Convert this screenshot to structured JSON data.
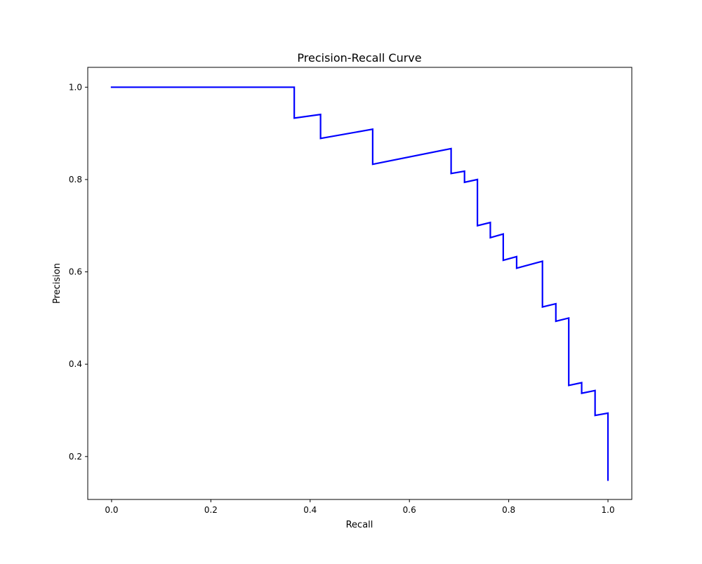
{
  "chart_data": {
    "type": "line",
    "title": "Precision-Recall Curve",
    "xlabel": "Recall",
    "ylabel": "Precision",
    "xlim": [
      -0.048,
      1.048
    ],
    "ylim": [
      0.107,
      1.043
    ],
    "xticks": [
      0.0,
      0.2,
      0.4,
      0.6,
      0.8,
      1.0
    ],
    "xtick_labels": [
      "0.0",
      "0.2",
      "0.4",
      "0.6",
      "0.8",
      "1.0"
    ],
    "yticks": [
      0.2,
      0.4,
      0.6,
      0.8,
      1.0
    ],
    "ytick_labels": [
      "0.2",
      "0.4",
      "0.6",
      "0.8",
      "1.0"
    ],
    "grid": false,
    "legend": "none",
    "series": [
      {
        "name": "Precision-Recall",
        "color": "#0000ff",
        "points": [
          [
            0.0,
            1.0
          ],
          [
            0.368,
            1.0
          ],
          [
            0.368,
            0.933
          ],
          [
            0.421,
            0.941
          ],
          [
            0.421,
            0.889
          ],
          [
            0.526,
            0.909
          ],
          [
            0.526,
            0.833
          ],
          [
            0.684,
            0.867
          ],
          [
            0.684,
            0.813
          ],
          [
            0.711,
            0.818
          ],
          [
            0.711,
            0.794
          ],
          [
            0.737,
            0.8
          ],
          [
            0.737,
            0.7
          ],
          [
            0.763,
            0.707
          ],
          [
            0.763,
            0.674
          ],
          [
            0.789,
            0.682
          ],
          [
            0.789,
            0.625
          ],
          [
            0.816,
            0.633
          ],
          [
            0.816,
            0.608
          ],
          [
            0.868,
            0.623
          ],
          [
            0.868,
            0.524
          ],
          [
            0.895,
            0.531
          ],
          [
            0.895,
            0.493
          ],
          [
            0.921,
            0.5
          ],
          [
            0.921,
            0.354
          ],
          [
            0.947,
            0.36
          ],
          [
            0.947,
            0.337
          ],
          [
            0.974,
            0.343
          ],
          [
            0.974,
            0.289
          ],
          [
            1.0,
            0.294
          ],
          [
            1.0,
            0.149
          ]
        ]
      }
    ]
  }
}
